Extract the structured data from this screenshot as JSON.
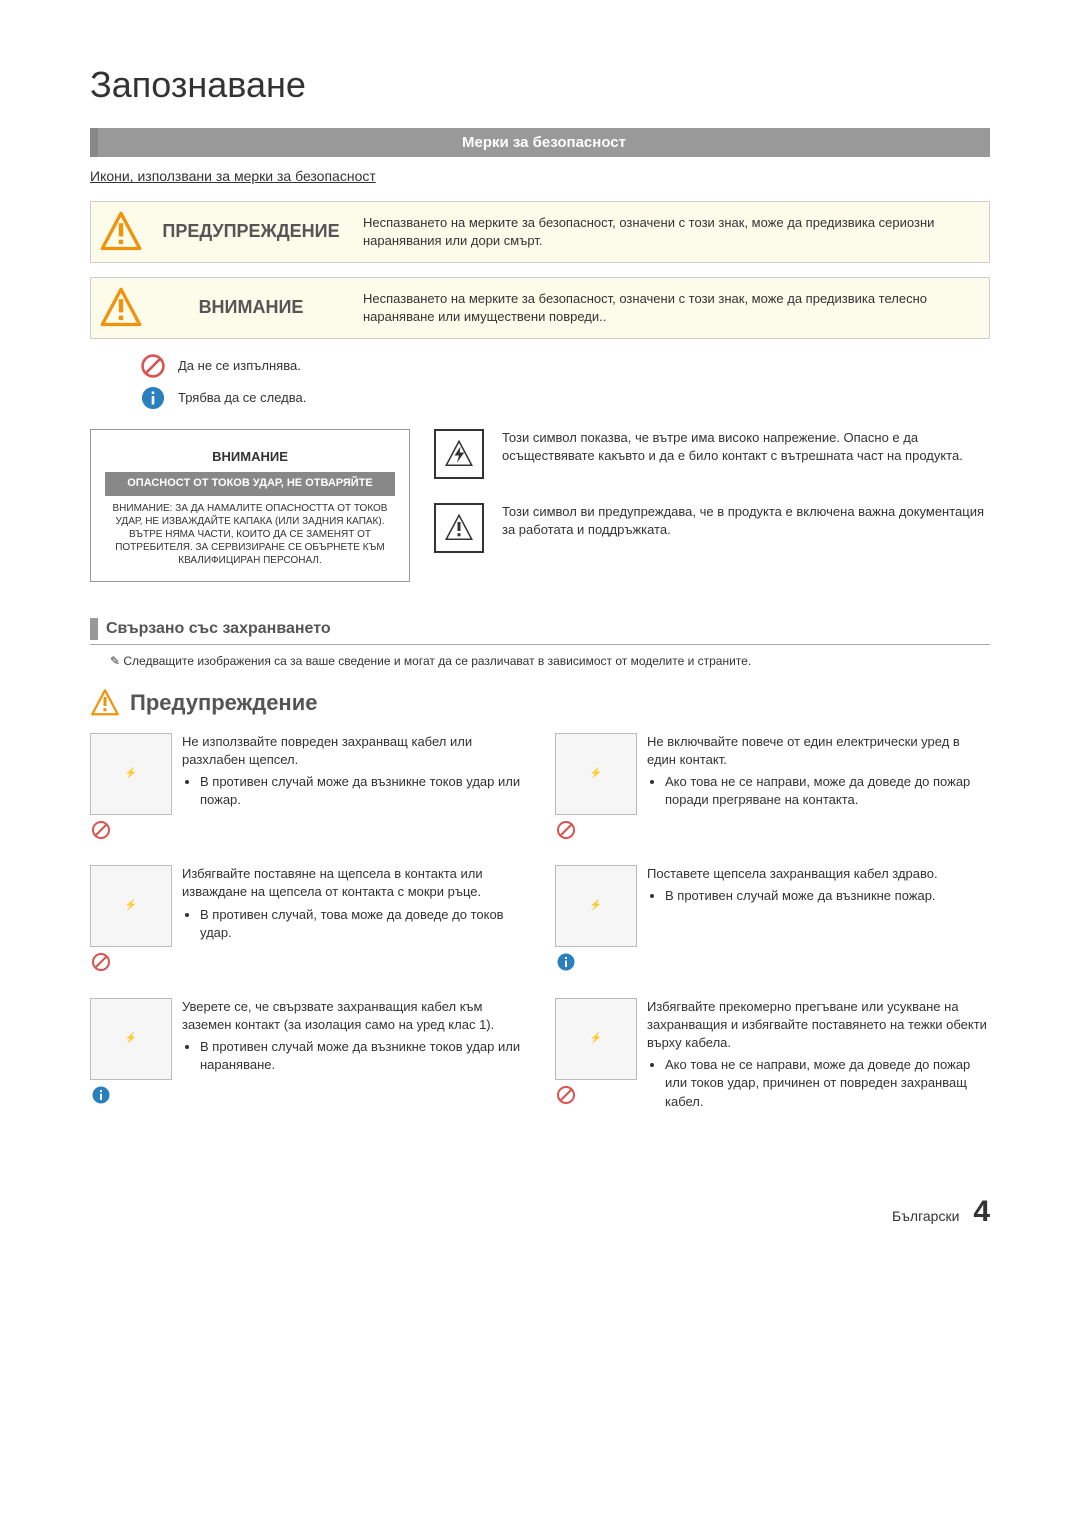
{
  "page": {
    "title": "Запознаване",
    "footer_lang": "Български",
    "page_number": "4"
  },
  "colors": {
    "section_bar": "#999999",
    "warn_bg": "#fdfceb",
    "border": "#cccccc",
    "text": "#333333",
    "prohibit": "#d9534f",
    "info_blue": "#2a7fbf",
    "warn_orange": "#f0920a"
  },
  "safety": {
    "header": "Мерки за безопасност",
    "intro": "Икони, използвани за мерки за безопасност",
    "rows": [
      {
        "label": "ПРЕДУПРЕЖДЕНИЕ",
        "text": "Неспазването на мерките за безопасност, означени с този знак, може да предизвика сериозни наранявания или дори смърт."
      },
      {
        "label": "ВНИМАНИЕ",
        "text": "Неспазването на мерките за безопасност, означени с този знак, може да предизвика телесно нараняване или имуществени повреди.."
      }
    ],
    "legend": [
      {
        "icon": "prohibit",
        "text": "Да не се изпълнява."
      },
      {
        "icon": "info",
        "text": "Трябва да се следва."
      }
    ]
  },
  "caution_box": {
    "title": "ВНИМАНИЕ",
    "bar": "ОПАСНОСТ ОТ ТОКОВ УДАР, НЕ ОТВАРЯЙТЕ",
    "body": "ВНИМАНИЕ: ЗА ДА НАМАЛИТЕ ОПАСНОСТТА ОТ ТОКОВ УДАР, НЕ ИЗВАЖДАЙТЕ КАПАКА (ИЛИ ЗАДНИЯ КАПАК). ВЪТРЕ НЯМА ЧАСТИ, КОИТО ДА СЕ ЗАМЕНЯТ ОТ ПОТРЕБИТЕЛЯ. ЗА СЕРВИЗИРАНЕ СЕ ОБЪРНЕТЕ КЪМ КВАЛИФИЦИРАН ПЕРСОНАЛ."
  },
  "symbols": [
    {
      "icon": "bolt",
      "text": "Този символ показва, че вътре има високо напрежение. Опасно е да осъществявате какъвто и да е било контакт с вътрешната част на продукта."
    },
    {
      "icon": "excl",
      "text": "Този символ ви предупреждава, че в продукта е включена важна документация за работата и поддръжката."
    }
  ],
  "power": {
    "header": "Свързано със захранването",
    "note": "Следващите изображения са за ваше сведение и могат да се различават в зависимост от моделите и страните.",
    "section_title": "Предупреждение",
    "items_left": [
      {
        "sym": "prohibit",
        "text": "Не използвайте повреден захранващ кабел или разхлабен щепсел.",
        "bullets": [
          "В противен случай може да възникне токов удар или пожар."
        ]
      },
      {
        "sym": "prohibit",
        "text": "Избягвайте поставяне на щепсела в контакта или изваждане на щепсела от контакта с мокри ръце.",
        "bullets": [
          "В противен случай, това може да доведе до токов удар."
        ]
      },
      {
        "sym": "info",
        "text": "Уверете се, че свързвате захранващия кабел към заземен контакт (за изолация само на уред клас 1).",
        "bullets": [
          "В противен случай може да възникне токов удар или нараняване."
        ]
      }
    ],
    "items_right": [
      {
        "sym": "prohibit",
        "text": "Не включвайте повече от един електрически уред в един контакт.",
        "bullets": [
          "Ако това не се направи, може да доведе до пожар поради прегряване на контакта."
        ]
      },
      {
        "sym": "info",
        "text": "Поставете щепсела захранващия кабел здраво.",
        "bullets": [
          "В противен случай може да възникне пожар."
        ]
      },
      {
        "sym": "prohibit",
        "text": "Избягвайте прекомерно прегъване или усукване на захранващия и избягвайте поставянето на тежки обекти върху кабела.",
        "bullets": [
          "Ако това не се направи, може да доведе до пожар или токов удар, причинен от повреден захранващ кабел."
        ]
      }
    ]
  }
}
